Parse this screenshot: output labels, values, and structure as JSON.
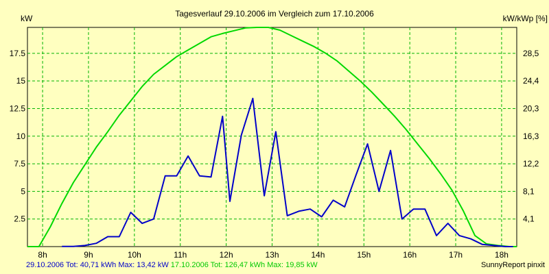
{
  "chart_data": {
    "type": "line",
    "title": "Tagesverlauf 29.10.2006 im Vergleich zum 17.10.2006",
    "ylabel_left": "kW",
    "ylabel_right": "kW/kWp [%]",
    "x_range": [
      7.67,
      18.33
    ],
    "ylim": [
      0,
      19.85
    ],
    "x_ticks": [
      {
        "x": 8,
        "label": "8h"
      },
      {
        "x": 9,
        "label": "9h"
      },
      {
        "x": 10,
        "label": "10h"
      },
      {
        "x": 11,
        "label": "11h"
      },
      {
        "x": 12,
        "label": "12h"
      },
      {
        "x": 13,
        "label": "13h"
      },
      {
        "x": 14,
        "label": "14h"
      },
      {
        "x": 15,
        "label": "15h"
      },
      {
        "x": 16,
        "label": "16h"
      },
      {
        "x": 17,
        "label": "17h"
      },
      {
        "x": 18,
        "label": "18h"
      }
    ],
    "y_left_ticks": [
      {
        "v": 2.5,
        "label": "2.5"
      },
      {
        "v": 5,
        "label": "5"
      },
      {
        "v": 7.5,
        "label": "7.5"
      },
      {
        "v": 10,
        "label": "10"
      },
      {
        "v": 12.5,
        "label": "12.5"
      },
      {
        "v": 15,
        "label": "15"
      },
      {
        "v": 17.5,
        "label": "17.5"
      }
    ],
    "y_right_ticks": [
      {
        "v": 2.5,
        "label": "4,1"
      },
      {
        "v": 5,
        "label": "8,1"
      },
      {
        "v": 7.5,
        "label": "12,2"
      },
      {
        "v": 10,
        "label": "16,3"
      },
      {
        "v": 12.5,
        "label": "20,3"
      },
      {
        "v": 15,
        "label": "24,4"
      },
      {
        "v": 17.5,
        "label": "28,5"
      }
    ],
    "series": [
      {
        "name": "29.10.2006",
        "color": "#0000c8",
        "summary": "29.10.2006 Tot: 40,71 kWh Max: 13,42 kW",
        "x": [
          8.42,
          8.67,
          8.92,
          9.17,
          9.42,
          9.67,
          9.92,
          10.17,
          10.42,
          10.67,
          10.92,
          11.17,
          11.42,
          11.67,
          11.92,
          12.08,
          12.33,
          12.58,
          12.83,
          13.08,
          13.33,
          13.58,
          13.83,
          14.08,
          14.33,
          14.58,
          14.83,
          15.08,
          15.33,
          15.58,
          15.83,
          16.08,
          16.33,
          16.58,
          16.83,
          17.08,
          17.33,
          17.58,
          17.83,
          18.08,
          18.25
        ],
        "values": [
          0.02,
          0.02,
          0.1,
          0.3,
          0.9,
          0.9,
          3.1,
          2.1,
          2.5,
          6.4,
          6.4,
          8.2,
          6.4,
          6.3,
          11.8,
          4.1,
          10.1,
          13.42,
          4.6,
          10.4,
          2.8,
          3.2,
          3.4,
          2.7,
          4.2,
          3.6,
          6.5,
          9.3,
          5.0,
          8.7,
          2.5,
          3.4,
          3.4,
          1.0,
          2.1,
          1.0,
          0.7,
          0.2,
          0.1,
          0.0,
          0.0
        ]
      },
      {
        "name": "17.10.2006",
        "color": "#00d800",
        "summary": "17.10.2006 Tot: 126,47 kWh Max: 19,85 kW",
        "x": [
          7.67,
          7.92,
          8.17,
          8.42,
          8.67,
          8.92,
          9.17,
          9.42,
          9.67,
          9.92,
          10.17,
          10.42,
          10.67,
          10.92,
          11.17,
          11.42,
          11.67,
          11.92,
          12.17,
          12.42,
          12.67,
          12.92,
          13.17,
          13.42,
          13.67,
          13.92,
          14.17,
          14.42,
          14.67,
          14.92,
          15.17,
          15.42,
          15.67,
          15.92,
          16.17,
          16.42,
          16.67,
          16.92,
          17.17,
          17.42,
          17.67,
          17.92,
          18.17,
          18.33
        ],
        "values": [
          0.0,
          0.0,
          1.8,
          3.9,
          5.8,
          7.4,
          9.0,
          10.4,
          11.9,
          13.2,
          14.5,
          15.6,
          16.4,
          17.2,
          17.8,
          18.4,
          19.0,
          19.3,
          19.55,
          19.8,
          19.85,
          19.85,
          19.6,
          19.1,
          18.6,
          18.1,
          17.5,
          16.8,
          15.9,
          15.0,
          14.0,
          12.9,
          11.8,
          10.6,
          9.3,
          8.0,
          6.6,
          5.1,
          3.2,
          1.0,
          0.25,
          0.1,
          0.0,
          0.0
        ]
      }
    ],
    "credit": "SunnyReport pinxit"
  }
}
